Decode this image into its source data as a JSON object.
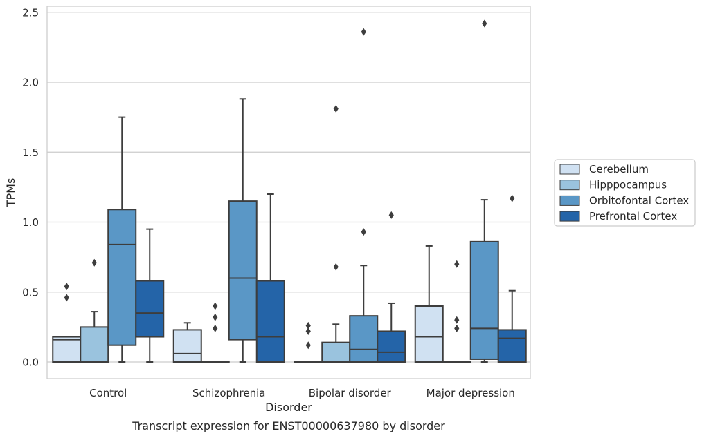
{
  "chart_data": {
    "type": "box",
    "title": "Transcript expression for ENST00000637980 by disorder",
    "xlabel": "Disorder",
    "ylabel": "TPMs",
    "ylim": [
      -0.12,
      2.55
    ],
    "yticks": [
      0.0,
      0.5,
      1.0,
      1.5,
      2.0,
      2.5
    ],
    "ytick_labels": [
      "0.0",
      "0.5",
      "1.0",
      "1.5",
      "2.0",
      "2.5"
    ],
    "grid": true,
    "legend_position": "right",
    "categories": [
      "Control",
      "Schizophrenia",
      "Bipolar disorder",
      "Major depression"
    ],
    "series": [
      {
        "name": "Cerebellum",
        "color": "#d0e1f2",
        "boxes": [
          {
            "whislo": 0.0,
            "q1": 0.0,
            "med": 0.16,
            "q3": 0.18,
            "whishi": 0.18,
            "fliers": [
              0.46,
              0.54
            ]
          },
          {
            "whislo": 0.0,
            "q1": 0.0,
            "med": 0.06,
            "q3": 0.23,
            "whishi": 0.28,
            "fliers": []
          },
          {
            "whislo": 0.0,
            "q1": 0.0,
            "med": 0.0,
            "q3": 0.0,
            "whishi": 0.0,
            "fliers": [
              0.12,
              0.22,
              0.26
            ]
          },
          {
            "whislo": 0.0,
            "q1": 0.0,
            "med": 0.18,
            "q3": 0.4,
            "whishi": 0.83,
            "fliers": []
          }
        ]
      },
      {
        "name": "Hipppocampus",
        "color": "#9ac3de",
        "boxes": [
          {
            "whislo": 0.0,
            "q1": 0.0,
            "med": 0.0,
            "q3": 0.25,
            "whishi": 0.36,
            "fliers": [
              0.71
            ]
          },
          {
            "whislo": 0.0,
            "q1": 0.0,
            "med": 0.0,
            "q3": 0.0,
            "whishi": 0.0,
            "fliers": [
              0.24,
              0.32,
              0.4
            ]
          },
          {
            "whislo": 0.0,
            "q1": 0.0,
            "med": 0.0,
            "q3": 0.14,
            "whishi": 0.27,
            "fliers": [
              0.68,
              1.81
            ]
          },
          {
            "whislo": 0.0,
            "q1": 0.0,
            "med": 0.0,
            "q3": 0.0,
            "whishi": 0.0,
            "fliers": [
              0.24,
              0.3,
              0.7
            ]
          }
        ]
      },
      {
        "name": "Orbitofontal Cortex",
        "color": "#5a97c6",
        "boxes": [
          {
            "whislo": 0.0,
            "q1": 0.12,
            "med": 0.84,
            "q3": 1.09,
            "whishi": 1.75,
            "fliers": []
          },
          {
            "whislo": 0.0,
            "q1": 0.16,
            "med": 0.6,
            "q3": 1.15,
            "whishi": 1.88,
            "fliers": []
          },
          {
            "whislo": 0.0,
            "q1": 0.0,
            "med": 0.09,
            "q3": 0.33,
            "whishi": 0.69,
            "fliers": [
              0.93,
              2.36
            ]
          },
          {
            "whislo": 0.0,
            "q1": 0.02,
            "med": 0.24,
            "q3": 0.86,
            "whishi": 1.16,
            "fliers": [
              2.42
            ]
          }
        ]
      },
      {
        "name": "Prefrontal Cortex",
        "color": "#2464a8",
        "boxes": [
          {
            "whislo": 0.0,
            "q1": 0.18,
            "med": 0.35,
            "q3": 0.58,
            "whishi": 0.95,
            "fliers": []
          },
          {
            "whislo": 0.0,
            "q1": 0.0,
            "med": 0.18,
            "q3": 0.58,
            "whishi": 1.2,
            "fliers": []
          },
          {
            "whislo": 0.0,
            "q1": 0.0,
            "med": 0.07,
            "q3": 0.22,
            "whishi": 0.42,
            "fliers": [
              1.05
            ]
          },
          {
            "whislo": 0.0,
            "q1": 0.0,
            "med": 0.17,
            "q3": 0.23,
            "whishi": 0.51,
            "fliers": [
              1.17
            ]
          }
        ]
      }
    ]
  }
}
